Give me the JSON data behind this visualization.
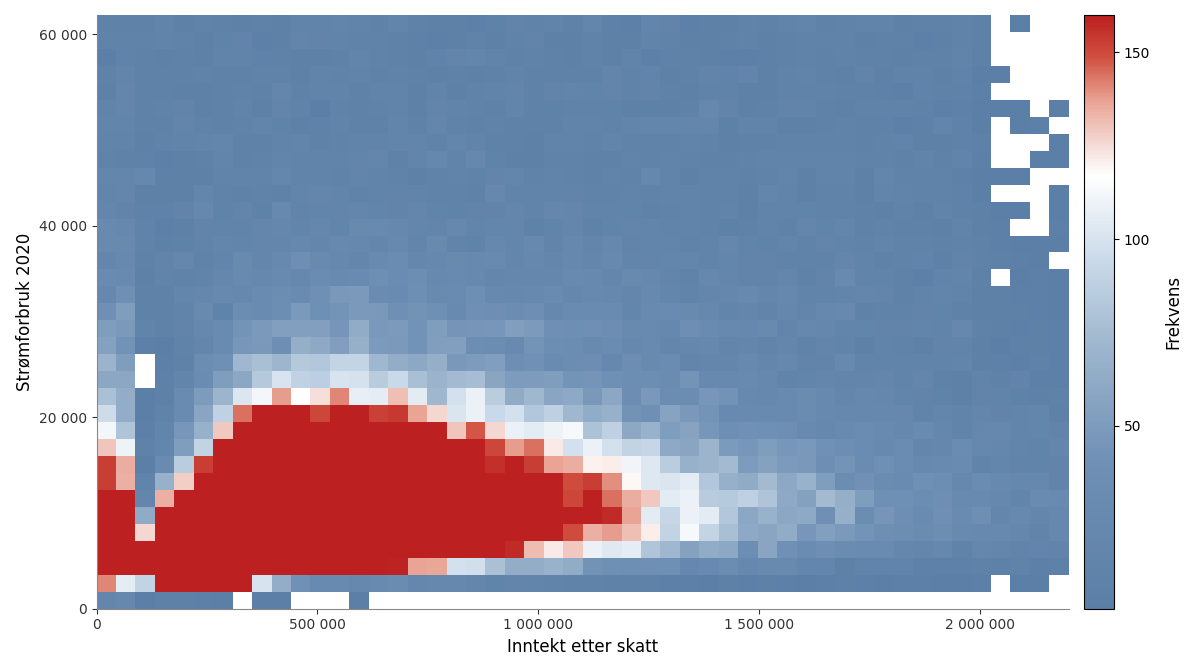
{
  "xlabel": "Inntekt etter skatt",
  "ylabel": "Strømforbruk 2020",
  "colorbar_label": "Frekvens",
  "xlim": [
    0,
    2200000
  ],
  "ylim": [
    0,
    62000
  ],
  "xticks": [
    0,
    500000,
    1000000,
    1500000,
    2000000
  ],
  "xtick_labels": [
    "0",
    "500 000",
    "1 000 000",
    "1 500 000",
    "2 000 000"
  ],
  "yticks": [
    0,
    20000,
    40000,
    60000
  ],
  "ytick_labels": [
    "0",
    "20 000",
    "40 000",
    "60 000"
  ],
  "colorbar_ticks": [
    50,
    100,
    150
  ],
  "vmin": 1,
  "vmax": 160,
  "figsize": [
    11.98,
    6.71
  ],
  "dpi": 100,
  "seed": 42,
  "gridsize_x": 50,
  "gridsize_y": 35,
  "background_color": "#ffffff",
  "cmap_colors": [
    [
      0.0,
      "#5b7fa6"
    ],
    [
      0.25,
      "#7090b5"
    ],
    [
      0.45,
      "#a0b8cf"
    ],
    [
      0.58,
      "#c8d8e8"
    ],
    [
      0.67,
      "#e8eff5"
    ],
    [
      0.73,
      "#ffffff"
    ],
    [
      0.78,
      "#f5ddd8"
    ],
    [
      0.86,
      "#e8a090"
    ],
    [
      0.93,
      "#d05040"
    ],
    [
      1.0,
      "#bc2020"
    ]
  ]
}
